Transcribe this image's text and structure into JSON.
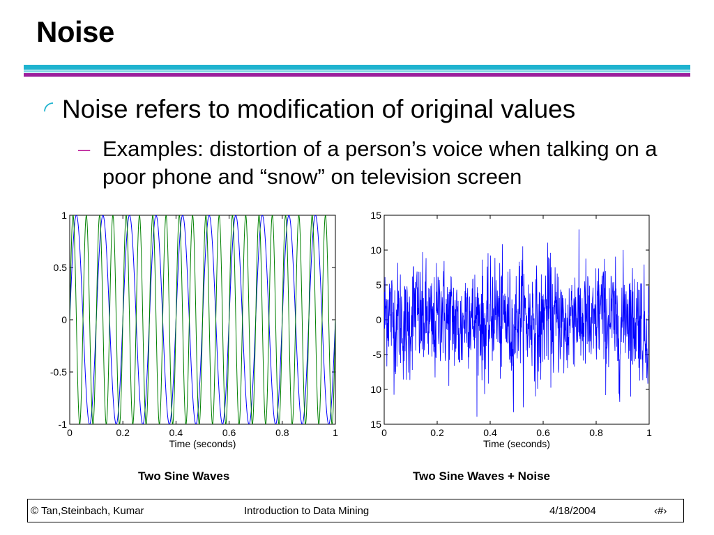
{
  "slide": {
    "title": "Noise",
    "bullet_main": "Noise refers to modification of original values",
    "sub_dash": "–",
    "bullet_sub": "Examples: distortion of a person’s voice when talking on a poor phone and “snow” on television screen",
    "caption_left": "Two Sine Waves",
    "caption_right": "Two Sine Waves + Noise"
  },
  "footer": {
    "authors": "© Tan,Steinbach, Kumar",
    "course": "Introduction to Data Mining",
    "date": "4/18/2004",
    "page": "‹#›"
  },
  "colors": {
    "accent_cyan": "#1fb3cf",
    "accent_purple": "#9c1f9c",
    "dash": "#c53aa6",
    "series_blue": "#0000ff",
    "series_green": "#008000"
  },
  "chart_data": [
    {
      "type": "line",
      "xlabel": "Time (seconds)",
      "ylabel": "",
      "xlim": [
        0,
        1
      ],
      "ylim": [
        -1,
        1
      ],
      "x_ticks": [
        "0",
        "0.2",
        "0.4",
        "0.6",
        "0.8",
        "1"
      ],
      "y_ticks": [
        "1",
        "0.5",
        "0",
        "-0.5",
        "-1"
      ],
      "series": [
        {
          "frequency_hz": 10,
          "amplitude": 1,
          "color": "#0000ff"
        },
        {
          "frequency_hz": 20,
          "amplitude": 1,
          "color": "#008000"
        }
      ]
    },
    {
      "type": "line",
      "xlabel": "Time (seconds)",
      "ylabel": "",
      "xlim": [
        0,
        1
      ],
      "ylim": [
        -15,
        15
      ],
      "x_ticks": [
        "0",
        "0.2",
        "0.4",
        "0.6",
        "0.8",
        "1"
      ],
      "y_ticks": [
        "15",
        "10",
        "5",
        "0",
        "-5",
        "10",
        "15"
      ],
      "series": [
        {
          "frequency_hz": [
            10,
            20
          ],
          "amplitude": 1,
          "noise_std": 4,
          "color": "#0000ff"
        }
      ]
    }
  ]
}
